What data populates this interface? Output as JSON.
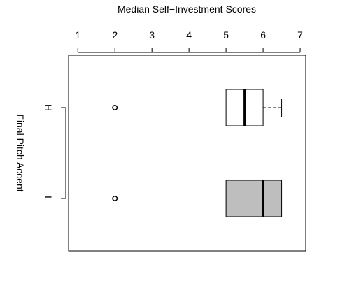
{
  "chart_data": {
    "type": "box",
    "orientation": "horizontal",
    "title": "Median Self−Investment Scores",
    "ylabel": "Final Pitch Accent",
    "xlabel": "",
    "xlim": [
      0.75,
      7.15
    ],
    "x_ticks": [
      1,
      2,
      3,
      4,
      5,
      6,
      7
    ],
    "x_tick_labels": [
      "1",
      "2",
      "3",
      "4",
      "5",
      "6",
      "7"
    ],
    "axis_position": "top",
    "grid": false,
    "categories": [
      "H",
      "L"
    ],
    "boxes": [
      {
        "name": "H",
        "whisker_low": 5,
        "q1": 5,
        "median": 5.5,
        "q3": 6,
        "whisker_high": 6.5,
        "outliers": [
          2
        ],
        "fill": "#ffffff"
      },
      {
        "name": "L",
        "whisker_low": 5,
        "q1": 5,
        "median": 6,
        "q3": 6.5,
        "whisker_high": 6.5,
        "outliers": [
          2
        ],
        "fill": "#bebebe"
      }
    ]
  }
}
